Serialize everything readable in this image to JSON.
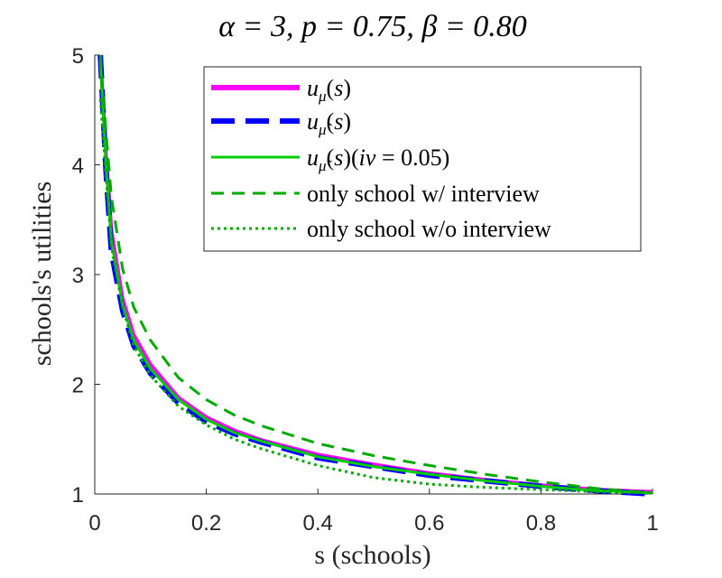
{
  "chart_data": {
    "type": "line",
    "title": "α = 3, p = 0.75, β = 0.80",
    "xlabel": "s (schools)",
    "ylabel": "schools's utilities",
    "xlim": [
      0,
      1
    ],
    "ylim": [
      1,
      5
    ],
    "x_ticks": [
      "0",
      "0.2",
      "0.4",
      "0.6",
      "0.8",
      "1"
    ],
    "y_ticks": [
      "1",
      "2",
      "3",
      "4",
      "5"
    ],
    "x_tick_values": [
      0,
      0.2,
      0.4,
      0.6,
      0.8,
      1
    ],
    "y_tick_values": [
      1,
      2,
      3,
      4,
      5
    ],
    "legend_position": "top-right",
    "x": [
      0.01,
      0.02,
      0.03,
      0.05,
      0.07,
      0.1,
      0.15,
      0.2,
      0.25,
      0.3,
      0.4,
      0.5,
      0.6,
      0.7,
      0.8,
      0.9,
      1.0
    ],
    "series": [
      {
        "name": "u_μ(s)",
        "color": "#ff00ff",
        "dash": "solid",
        "values": [
          5.0,
          4.1,
          3.4,
          2.78,
          2.45,
          2.18,
          1.88,
          1.7,
          1.58,
          1.49,
          1.36,
          1.27,
          1.19,
          1.13,
          1.08,
          1.04,
          1.02
        ]
      },
      {
        "name": "u_μ̂(s)",
        "color": "#0000ff",
        "dash": "dashed",
        "values": [
          5.0,
          3.95,
          3.2,
          2.67,
          2.35,
          2.1,
          1.83,
          1.66,
          1.55,
          1.47,
          1.33,
          1.25,
          1.17,
          1.12,
          1.07,
          1.03,
          1.0
        ]
      },
      {
        "name": "u_μ̃(s)(iv = 0.05)",
        "color": "#00cc00",
        "dash": "solid",
        "values": [
          4.95,
          4.0,
          3.3,
          2.72,
          2.4,
          2.14,
          1.86,
          1.68,
          1.56,
          1.48,
          1.34,
          1.25,
          1.18,
          1.12,
          1.07,
          1.03,
          1.01
        ]
      },
      {
        "name": "only school w/ interview",
        "color": "#00aa00",
        "dash": "dashed",
        "values": [
          5.0,
          4.3,
          3.7,
          3.05,
          2.7,
          2.4,
          2.06,
          1.86,
          1.72,
          1.62,
          1.46,
          1.35,
          1.26,
          1.18,
          1.11,
          1.05,
          1.01
        ]
      },
      {
        "name": "only school w/o interview",
        "color": "#00aa00",
        "dash": "dotted",
        "values": [
          4.6,
          3.9,
          3.25,
          2.7,
          2.35,
          2.08,
          1.8,
          1.63,
          1.5,
          1.41,
          1.26,
          1.15,
          1.09,
          1.06,
          1.04,
          1.02,
          1.01
        ]
      }
    ],
    "legend": {
      "labels": [
        "u_μ(s)",
        "u_μ̂(s)",
        "u_μ̃(s)(iv = 0.05)",
        "only school w/ interview",
        "only school w/o interview"
      ]
    }
  }
}
